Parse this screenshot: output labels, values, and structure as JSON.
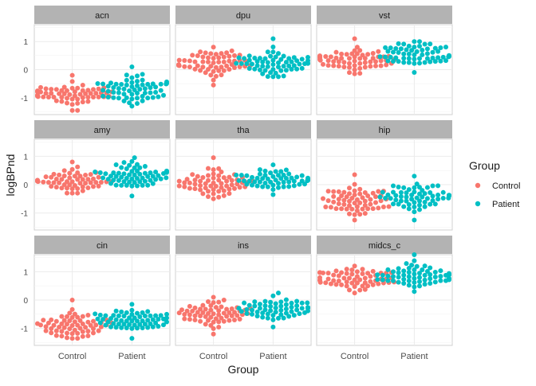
{
  "chart_data": {
    "type": "scatter",
    "subtype": "faceted beeswarm",
    "xlabel": "Group",
    "ylabel": "logBPnd",
    "categories": [
      "Control",
      "Patient"
    ],
    "ylim": [
      -1.6,
      1.6
    ],
    "y_ticks": [
      -1,
      0,
      1
    ],
    "grid": true,
    "legend": {
      "title": "Group",
      "placement": "right",
      "entries": [
        "Control",
        "Patient"
      ]
    },
    "colors": {
      "Control": "#F8766D",
      "Patient": "#00BFC4",
      "strip": "#b3b3b3",
      "grid": "#ebebeb",
      "panel_border": "#d0d0d0"
    },
    "facets": [
      {
        "label": "acn",
        "control": {
          "center": -0.9,
          "min": -1.45,
          "max": -0.2
        },
        "patient": {
          "center": -0.7,
          "min": -1.3,
          "max": 0.1
        }
      },
      {
        "label": "dpu",
        "control": {
          "center": 0.2,
          "min": -0.55,
          "max": 0.8
        },
        "patient": {
          "center": 0.25,
          "min": -0.25,
          "max": 1.1
        }
      },
      {
        "label": "vst",
        "control": {
          "center": 0.35,
          "min": -0.15,
          "max": 1.1
        },
        "patient": {
          "center": 0.55,
          "min": -0.1,
          "max": 1.0
        }
      },
      {
        "label": "amy",
        "control": {
          "center": 0.15,
          "min": -0.3,
          "max": 0.8
        },
        "patient": {
          "center": 0.3,
          "min": -0.4,
          "max": 0.95
        }
      },
      {
        "label": "tha",
        "control": {
          "center": 0.05,
          "min": -0.5,
          "max": 0.95
        },
        "patient": {
          "center": 0.15,
          "min": -0.35,
          "max": 0.7
        }
      },
      {
        "label": "hip",
        "control": {
          "center": -0.65,
          "min": -1.25,
          "max": 0.35
        },
        "patient": {
          "center": -0.45,
          "min": -1.25,
          "max": 0.3
        }
      },
      {
        "label": "cin",
        "control": {
          "center": -0.9,
          "min": -1.35,
          "max": 0.0
        },
        "patient": {
          "center": -0.7,
          "min": -1.35,
          "max": -0.15
        }
      },
      {
        "label": "ins",
        "control": {
          "center": -0.5,
          "min": -1.2,
          "max": 0.1
        },
        "patient": {
          "center": -0.3,
          "min": -0.95,
          "max": 0.25
        }
      },
      {
        "label": "midcs_c",
        "control": {
          "center": 0.75,
          "min": 0.25,
          "max": 1.2
        },
        "patient": {
          "center": 0.9,
          "min": 0.3,
          "max": 1.6
        }
      }
    ]
  }
}
